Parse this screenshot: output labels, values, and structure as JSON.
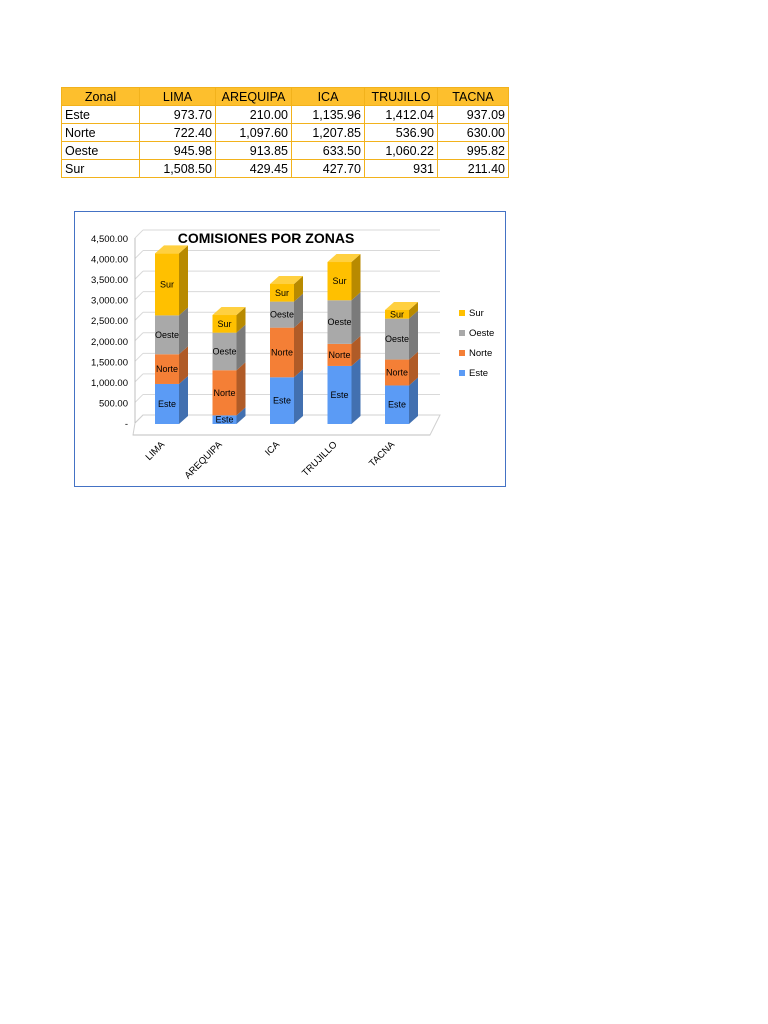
{
  "table": {
    "headers": [
      "Zonal",
      "LIMA",
      "AREQUIPA",
      "ICA",
      "TRUJILLO",
      "TACNA"
    ],
    "rows": [
      {
        "zone": "Este",
        "values": [
          "973.70",
          "210.00",
          "1,135.96",
          "1,412.04",
          "937.09"
        ]
      },
      {
        "zone": "Norte",
        "values": [
          "722.40",
          "1,097.60",
          "1,207.85",
          "536.90",
          "630.00"
        ]
      },
      {
        "zone": "Oeste",
        "values": [
          "945.98",
          "913.85",
          "633.50",
          "1,060.22",
          "995.82"
        ]
      },
      {
        "zone": "Sur",
        "values": [
          "1,508.50",
          "429.45",
          "427.70",
          "931",
          "211.40"
        ]
      }
    ],
    "header_color": "#fdbf2d",
    "border_color": "#f2b21c"
  },
  "chart_data": {
    "type": "bar",
    "stacked": true,
    "style": "3d-column",
    "title": "COMISIONES POR ZONAS",
    "categories": [
      "LIMA",
      "AREQUIPA",
      "ICA",
      "TRUJILLO",
      "TACNA"
    ],
    "series": [
      {
        "name": "Este",
        "color": "#5b9bf5",
        "values": [
          973.7,
          210.0,
          1135.96,
          1412.04,
          937.09
        ]
      },
      {
        "name": "Norte",
        "color": "#f47f36",
        "values": [
          722.4,
          1097.6,
          1207.85,
          536.9,
          630.0
        ]
      },
      {
        "name": "Oeste",
        "color": "#a9a9a9",
        "values": [
          945.98,
          913.85,
          633.5,
          1060.22,
          995.82
        ]
      },
      {
        "name": "Sur",
        "color": "#ffc000",
        "values": [
          1508.5,
          429.45,
          427.7,
          931,
          211.4
        ]
      }
    ],
    "ylim": [
      0,
      4500
    ],
    "yticks": [
      "-",
      "500.00",
      "1,000.00",
      "1,500.00",
      "2,000.00",
      "2,500.00",
      "3,000.00",
      "3,500.00",
      "4,000.00",
      "4,500.00"
    ],
    "grid": true,
    "legend": {
      "position": "right",
      "order": [
        "Sur",
        "Oeste",
        "Norte",
        "Este"
      ]
    },
    "data_labels": "series-name",
    "frame_color": "#4472c4"
  }
}
